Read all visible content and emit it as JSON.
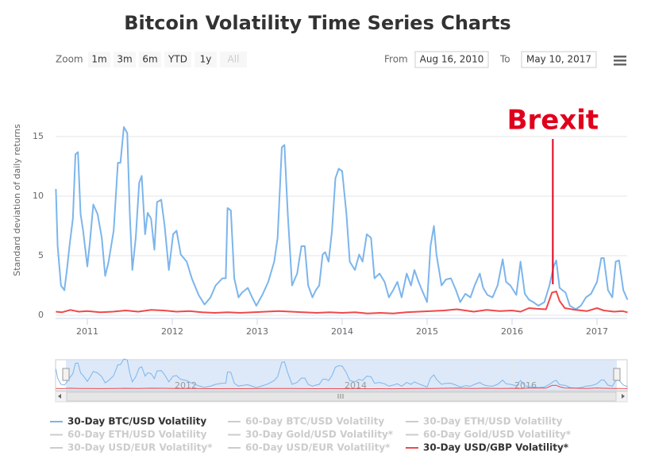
{
  "chart_data": {
    "type": "line",
    "title": "Bitcoin Volatility Time Series Charts",
    "zoom_label": "Zoom",
    "zoom_buttons": [
      "1m",
      "3m",
      "6m",
      "YTD",
      "1y",
      "All"
    ],
    "from_label": "From",
    "from_date": "Aug 16, 2010",
    "to_label": "To",
    "to_date": "May 10, 2017",
    "y_label": "Standard deviation of daily returns",
    "xlim": [
      2010.626,
      2017.355
    ],
    "xticks": [
      2011,
      2012,
      2013,
      2014,
      2015,
      2016,
      2017
    ],
    "ylim": [
      0,
      20
    ],
    "yticks": [
      0,
      5,
      10,
      15
    ],
    "grid": true,
    "navigator_xticks": [
      2012,
      2014,
      2016
    ],
    "annotations": [
      {
        "text": "Brexit",
        "x": 2016.48,
        "color": "#e0001b"
      }
    ],
    "series": [
      {
        "name": "30-Day BTC/USD Volatility",
        "color": "#7cb5ec",
        "visible": true,
        "x": [
          2010.63,
          2010.65,
          2010.69,
          2010.73,
          2010.76,
          2010.79,
          2010.83,
          2010.86,
          2010.89,
          2010.92,
          2010.95,
          2011.0,
          2011.03,
          2011.07,
          2011.12,
          2011.17,
          2011.21,
          2011.25,
          2011.31,
          2011.36,
          2011.39,
          2011.43,
          2011.47,
          2011.5,
          2011.53,
          2011.57,
          2011.61,
          2011.64,
          2011.68,
          2011.71,
          2011.75,
          2011.79,
          2011.82,
          2011.87,
          2011.91,
          2011.96,
          2012.01,
          2012.05,
          2012.1,
          2012.17,
          2012.23,
          2012.31,
          2012.38,
          2012.45,
          2012.51,
          2012.59,
          2012.63,
          2012.65,
          2012.69,
          2012.73,
          2012.78,
          2012.82,
          2012.89,
          2012.94,
          2012.99,
          2013.06,
          2013.13,
          2013.2,
          2013.24,
          2013.29,
          2013.32,
          2013.36,
          2013.41,
          2013.47,
          2013.52,
          2013.56,
          2013.6,
          2013.65,
          2013.69,
          2013.73,
          2013.77,
          2013.8,
          2013.84,
          2013.88,
          2013.92,
          2013.96,
          2014.0,
          2014.05,
          2014.09,
          2014.15,
          2014.2,
          2014.24,
          2014.29,
          2014.34,
          2014.38,
          2014.44,
          2014.5,
          2014.55,
          2014.6,
          2014.65,
          2014.7,
          2014.76,
          2014.81,
          2014.85,
          2014.9,
          2014.94,
          2015.0,
          2015.04,
          2015.08,
          2015.11,
          2015.17,
          2015.22,
          2015.28,
          2015.34,
          2015.39,
          2015.45,
          2015.51,
          2015.56,
          2015.62,
          2015.66,
          2015.71,
          2015.77,
          2015.83,
          2015.89,
          2015.93,
          2015.98,
          2016.05,
          2016.1,
          2016.15,
          2016.2,
          2016.25,
          2016.31,
          2016.38,
          2016.44,
          2016.49,
          2016.52,
          2016.56,
          2016.63,
          2016.68,
          2016.75,
          2016.81,
          2016.87,
          2016.93,
          2017.0,
          2017.05,
          2017.08,
          2017.13,
          2017.18,
          2017.22,
          2017.26,
          2017.31,
          2017.36
        ],
        "values": [
          10.6,
          5.8,
          2.5,
          2.1,
          3.8,
          5.8,
          8.1,
          13.5,
          13.7,
          8.5,
          7.1,
          4.1,
          6.1,
          9.3,
          8.5,
          6.5,
          3.3,
          4.5,
          7.1,
          12.8,
          12.8,
          15.8,
          15.3,
          8.5,
          3.8,
          6.5,
          11.1,
          11.7,
          6.8,
          8.6,
          8.1,
          5.5,
          9.5,
          9.7,
          7.5,
          3.8,
          6.8,
          7.1,
          5.1,
          4.5,
          3.1,
          1.7,
          0.9,
          1.5,
          2.5,
          3.1,
          3.1,
          9.0,
          8.8,
          3.1,
          1.5,
          1.9,
          2.3,
          1.5,
          0.8,
          1.7,
          2.8,
          4.5,
          6.5,
          14.1,
          14.3,
          8.5,
          2.5,
          3.5,
          5.8,
          5.8,
          2.5,
          1.5,
          2.1,
          2.5,
          5.1,
          5.3,
          4.5,
          7.1,
          11.5,
          12.3,
          12.1,
          8.5,
          4.5,
          3.8,
          5.1,
          4.5,
          6.8,
          6.5,
          3.1,
          3.5,
          2.8,
          1.5,
          2.1,
          2.8,
          1.5,
          3.5,
          2.5,
          3.8,
          2.8,
          2.1,
          1.1,
          5.8,
          7.5,
          5.1,
          2.5,
          3.0,
          3.1,
          2.1,
          1.1,
          1.8,
          1.5,
          2.5,
          3.5,
          2.3,
          1.7,
          1.5,
          2.5,
          4.7,
          2.8,
          2.5,
          1.7,
          4.5,
          1.8,
          1.3,
          1.1,
          0.8,
          1.1,
          2.5,
          4.1,
          4.6,
          2.3,
          1.9,
          0.8,
          0.5,
          0.8,
          1.5,
          1.8,
          2.8,
          4.8,
          4.8,
          2.1,
          1.5,
          4.5,
          4.6,
          2.1,
          1.3
        ]
      },
      {
        "name": "60-Day BTC/USD Volatility",
        "visible": false
      },
      {
        "name": "30-Day ETH/USD Volatility",
        "visible": false
      },
      {
        "name": "60-Day ETH/USD Volatility",
        "visible": false
      },
      {
        "name": "30-Day Gold/USD Volatility*",
        "visible": false
      },
      {
        "name": "60-Day Gold/USD Volatility*",
        "visible": false
      },
      {
        "name": "30-Day USD/EUR Volatility*",
        "visible": false
      },
      {
        "name": "60-Day USD/EUR Volatility*",
        "visible": false
      },
      {
        "name": "30-Day USD/GBP Volatility*",
        "color": "#f0484b",
        "visible": true,
        "x": [
          2010.63,
          2010.7,
          2010.8,
          2010.9,
          2011.0,
          2011.15,
          2011.3,
          2011.45,
          2011.6,
          2011.75,
          2011.9,
          2012.05,
          2012.2,
          2012.35,
          2012.5,
          2012.65,
          2012.8,
          2012.95,
          2013.1,
          2013.25,
          2013.4,
          2013.55,
          2013.7,
          2013.85,
          2014.0,
          2014.15,
          2014.3,
          2014.45,
          2014.6,
          2014.75,
          2014.9,
          2015.05,
          2015.2,
          2015.35,
          2015.45,
          2015.55,
          2015.7,
          2015.85,
          2016.0,
          2016.1,
          2016.2,
          2016.28,
          2016.4,
          2016.47,
          2016.52,
          2016.56,
          2016.62,
          2016.75,
          2016.88,
          2017.0,
          2017.08,
          2017.2,
          2017.3,
          2017.36
        ],
        "values": [
          0.3,
          0.25,
          0.45,
          0.3,
          0.35,
          0.25,
          0.3,
          0.4,
          0.3,
          0.45,
          0.4,
          0.3,
          0.35,
          0.25,
          0.2,
          0.25,
          0.2,
          0.25,
          0.3,
          0.35,
          0.3,
          0.25,
          0.2,
          0.25,
          0.2,
          0.25,
          0.15,
          0.2,
          0.15,
          0.25,
          0.3,
          0.35,
          0.4,
          0.5,
          0.4,
          0.3,
          0.45,
          0.35,
          0.4,
          0.3,
          0.6,
          0.55,
          0.5,
          1.9,
          2.0,
          1.2,
          0.6,
          0.45,
          0.35,
          0.6,
          0.4,
          0.3,
          0.35,
          0.25
        ]
      }
    ]
  }
}
